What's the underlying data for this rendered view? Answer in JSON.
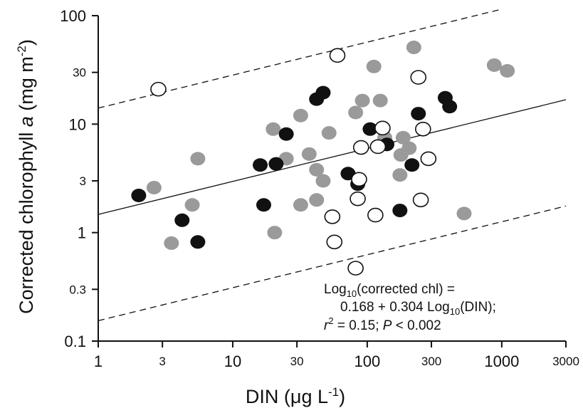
{
  "chart_data": {
    "type": "scatter",
    "title": "",
    "xlabel": {
      "main": "DIN (μg L",
      "sup": "-1",
      "end": ")"
    },
    "ylabel": {
      "main": "Corrected chlorophyll ",
      "italic": "a",
      "mid": " (mg m",
      "sup": "-2",
      "end": ")"
    },
    "xscale": "log",
    "yscale": "log",
    "xlim": [
      1,
      3000
    ],
    "ylim": [
      0.1,
      100
    ],
    "x_ticks": [
      {
        "value": 1,
        "label": "1",
        "major": true
      },
      {
        "value": 3,
        "label": "3",
        "major": false
      },
      {
        "value": 10,
        "label": "10",
        "major": true
      },
      {
        "value": 30,
        "label": "30",
        "major": false
      },
      {
        "value": 100,
        "label": "100",
        "major": true
      },
      {
        "value": 300,
        "label": "300",
        "major": false
      },
      {
        "value": 1000,
        "label": "1000",
        "major": true
      },
      {
        "value": 3000,
        "label": "3000",
        "major": false
      }
    ],
    "y_ticks": [
      {
        "value": 0.1,
        "label": "0.1",
        "major": true
      },
      {
        "value": 0.3,
        "label": "0.3",
        "major": false
      },
      {
        "value": 1,
        "label": "1",
        "major": true
      },
      {
        "value": 3,
        "label": "3",
        "major": false
      },
      {
        "value": 10,
        "label": "10",
        "major": true
      },
      {
        "value": 30,
        "label": "30",
        "major": false
      },
      {
        "value": 100,
        "label": "100",
        "major": true
      }
    ],
    "grid": false,
    "legend": "none",
    "colors": {
      "black": "#111111",
      "gray": "#9a9a9a",
      "open_fill": "#ffffff",
      "open_stroke": "#111111"
    },
    "regression": {
      "intercept": 0.168,
      "slope": 0.304,
      "style": "solid",
      "x_range": [
        1,
        3000
      ]
    },
    "prediction_bounds": [
      {
        "name": "upper",
        "offset": 0.98,
        "style": "dashed",
        "x_range": [
          1,
          1000
        ]
      },
      {
        "name": "lower",
        "offset": -0.98,
        "style": "dashed",
        "x_range": [
          1,
          3000
        ]
      }
    ],
    "annotation": {
      "line1": {
        "pre": "Log",
        "sub": "10",
        "post": "(corrected chl) ="
      },
      "line2": {
        "pre": "0.168 + 0.304 Log",
        "sub": "10",
        "post": "(DIN);"
      },
      "line3": {
        "r": "r",
        "sup": "2",
        "mid": " = 0.15; ",
        "p": "P",
        "end": " < 0.002"
      }
    },
    "series": [
      {
        "marker": "black",
        "points": [
          {
            "x": 2,
            "y": 2.2
          },
          {
            "x": 4.2,
            "y": 1.3
          },
          {
            "x": 5.5,
            "y": 0.82
          },
          {
            "x": 16,
            "y": 4.2
          },
          {
            "x": 17,
            "y": 1.8
          },
          {
            "x": 21,
            "y": 4.3
          },
          {
            "x": 25,
            "y": 8.1
          },
          {
            "x": 42,
            "y": 17
          },
          {
            "x": 47,
            "y": 19.5
          },
          {
            "x": 72,
            "y": 3.5
          },
          {
            "x": 85,
            "y": 2.8
          },
          {
            "x": 105,
            "y": 9
          },
          {
            "x": 140,
            "y": 6.5
          },
          {
            "x": 175,
            "y": 1.6
          },
          {
            "x": 215,
            "y": 4.2
          },
          {
            "x": 240,
            "y": 12.5
          },
          {
            "x": 380,
            "y": 17.5
          },
          {
            "x": 410,
            "y": 14.5
          }
        ]
      },
      {
        "marker": "gray",
        "points": [
          {
            "x": 2.6,
            "y": 2.6
          },
          {
            "x": 3.5,
            "y": 0.8
          },
          {
            "x": 5,
            "y": 1.8
          },
          {
            "x": 5.5,
            "y": 4.8
          },
          {
            "x": 20,
            "y": 9
          },
          {
            "x": 20.5,
            "y": 1
          },
          {
            "x": 25,
            "y": 4.8
          },
          {
            "x": 32,
            "y": 12
          },
          {
            "x": 32,
            "y": 1.8
          },
          {
            "x": 37,
            "y": 5.3
          },
          {
            "x": 42,
            "y": 3.8
          },
          {
            "x": 42,
            "y": 2
          },
          {
            "x": 47,
            "y": 3
          },
          {
            "x": 52,
            "y": 8.3
          },
          {
            "x": 82,
            "y": 12.8
          },
          {
            "x": 92,
            "y": 16.5
          },
          {
            "x": 112,
            "y": 34
          },
          {
            "x": 125,
            "y": 16.5
          },
          {
            "x": 135,
            "y": 7.5
          },
          {
            "x": 175,
            "y": 3.4
          },
          {
            "x": 178,
            "y": 5.2
          },
          {
            "x": 185,
            "y": 7.5
          },
          {
            "x": 205,
            "y": 6
          },
          {
            "x": 222,
            "y": 51
          },
          {
            "x": 525,
            "y": 1.5
          },
          {
            "x": 880,
            "y": 35
          },
          {
            "x": 1100,
            "y": 31
          }
        ]
      },
      {
        "marker": "open",
        "points": [
          {
            "x": 2.8,
            "y": 21
          },
          {
            "x": 55,
            "y": 1.4
          },
          {
            "x": 57,
            "y": 0.82
          },
          {
            "x": 60,
            "y": 43
          },
          {
            "x": 82,
            "y": 0.47
          },
          {
            "x": 85,
            "y": 2.05
          },
          {
            "x": 87,
            "y": 3.1
          },
          {
            "x": 90,
            "y": 6.1
          },
          {
            "x": 115,
            "y": 1.45
          },
          {
            "x": 120,
            "y": 6.2
          },
          {
            "x": 130,
            "y": 9.2
          },
          {
            "x": 240,
            "y": 27
          },
          {
            "x": 250,
            "y": 2
          },
          {
            "x": 260,
            "y": 9
          },
          {
            "x": 285,
            "y": 4.8
          }
        ]
      }
    ]
  }
}
